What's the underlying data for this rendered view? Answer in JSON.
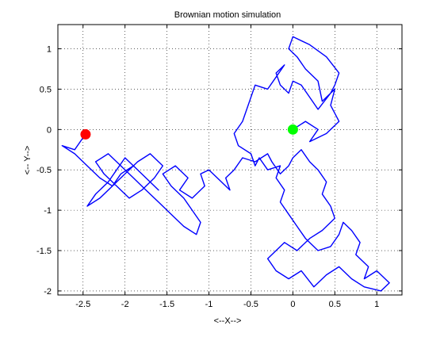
{
  "chart_data": {
    "type": "line",
    "title": "Brownian motion simulation",
    "xlabel": "<--X-->",
    "ylabel": "<-- Y-->",
    "xlim": [
      -2.8,
      1.3
    ],
    "ylim": [
      -2.05,
      1.3
    ],
    "grid": true,
    "xticks": [
      -2.5,
      -2,
      -1.5,
      -1,
      -0.5,
      0,
      0.5,
      1
    ],
    "xtick_labels": [
      "-2.5",
      "-2",
      "-1.5",
      "-1",
      "-0.5",
      "0",
      "0.5",
      "1"
    ],
    "yticks": [
      1,
      0.5,
      0,
      -0.5,
      -1,
      -1.5,
      -2
    ],
    "ytick_labels": [
      "1",
      "0.5",
      "0",
      "-0.5",
      "-1",
      "-1.5",
      "-2"
    ],
    "series": [
      {
        "color": "#0000ff",
        "x": [
          0,
          0.15,
          0.3,
          0.2,
          0.4,
          0.55,
          0.45,
          0.5,
          0.35,
          0.3,
          0.15,
          0.05,
          -0.05,
          0.0,
          0.2,
          0.4,
          0.55,
          0.5,
          0.45,
          0.3,
          0.2,
          0.1,
          0.0,
          -0.05,
          -0.15,
          -0.2,
          -0.1,
          -0.2,
          -0.3,
          -0.45,
          -0.5,
          -0.55,
          -0.6,
          -0.7,
          -0.65,
          -0.5,
          -0.45,
          -0.4,
          -0.3,
          -0.15,
          -0.2,
          -0.1,
          -0.15,
          -0.05,
          0.05,
          0.15,
          0.3,
          0.45,
          0.55,
          0.6,
          0.7,
          0.8,
          0.75,
          0.9,
          0.85,
          1.0,
          1.15,
          1.05,
          0.85,
          0.7,
          0.55,
          0.4,
          0.25,
          0.1,
          -0.05,
          -0.2,
          -0.3,
          -0.2,
          -0.1,
          0.05,
          0.2,
          0.35,
          0.5,
          0.45,
          0.35,
          0.4,
          0.3,
          0.2,
          0.1,
          0.0,
          -0.05,
          -0.15,
          -0.25,
          -0.3,
          -0.45,
          -0.6,
          -0.7,
          -0.8,
          -0.75,
          -0.85,
          -1.0,
          -1.1,
          -1.05,
          -1.2,
          -1.35,
          -1.25,
          -1.4,
          -1.55,
          -1.45,
          -1.3,
          -1.2,
          -1.1,
          -1.15,
          -1.3,
          -1.45,
          -1.6,
          -1.75,
          -1.9,
          -2.05,
          -2.2,
          -2.35,
          -2.25,
          -2.1,
          -1.95,
          -1.8,
          -1.65,
          -1.55,
          -1.7,
          -1.85,
          -2.0,
          -2.15,
          -2.3,
          -2.45,
          -2.35,
          -2.2,
          -2.1,
          -2.0,
          -1.85,
          -1.7,
          -1.6,
          -1.75,
          -1.9,
          -2.05,
          -2.15,
          -2.3,
          -2.45,
          -2.6,
          -2.75,
          -2.6,
          -2.5,
          -2.47
        ],
        "y": [
          0,
          0.1,
          0.0,
          -0.15,
          -0.05,
          0.1,
          0.3,
          0.5,
          0.35,
          0.6,
          0.75,
          0.9,
          1.0,
          1.15,
          1.05,
          0.9,
          0.7,
          0.55,
          0.45,
          0.25,
          0.4,
          0.55,
          0.6,
          0.45,
          0.55,
          0.7,
          0.8,
          0.65,
          0.5,
          0.55,
          0.4,
          0.25,
          0.1,
          -0.05,
          -0.2,
          -0.3,
          -0.45,
          -0.35,
          -0.5,
          -0.45,
          -0.6,
          -0.75,
          -0.9,
          -1.05,
          -1.2,
          -1.35,
          -1.5,
          -1.45,
          -1.3,
          -1.15,
          -1.25,
          -1.4,
          -1.55,
          -1.7,
          -1.85,
          -1.75,
          -1.9,
          -2.0,
          -1.95,
          -1.85,
          -1.7,
          -1.8,
          -1.95,
          -1.75,
          -1.85,
          -1.75,
          -1.6,
          -1.5,
          -1.4,
          -1.5,
          -1.35,
          -1.25,
          -1.1,
          -0.95,
          -0.8,
          -0.65,
          -0.5,
          -0.4,
          -0.25,
          -0.35,
          -0.45,
          -0.55,
          -0.4,
          -0.3,
          -0.4,
          -0.35,
          -0.5,
          -0.6,
          -0.75,
          -0.65,
          -0.5,
          -0.55,
          -0.7,
          -0.85,
          -0.75,
          -0.6,
          -0.45,
          -0.55,
          -0.7,
          -0.85,
          -1.0,
          -1.15,
          -1.3,
          -1.2,
          -1.05,
          -0.9,
          -0.75,
          -0.6,
          -0.45,
          -0.3,
          -0.4,
          -0.55,
          -0.7,
          -0.85,
          -0.75,
          -0.6,
          -0.45,
          -0.3,
          -0.4,
          -0.55,
          -0.7,
          -0.85,
          -0.95,
          -0.8,
          -0.65,
          -0.5,
          -0.35,
          -0.5,
          -0.65,
          -0.75,
          -0.6,
          -0.45,
          -0.55,
          -0.7,
          -0.6,
          -0.45,
          -0.3,
          -0.2,
          -0.25,
          -0.1,
          -0.05
        ]
      }
    ],
    "markers": [
      {
        "x": 0,
        "y": 0,
        "color": "#00ff00"
      },
      {
        "x": -2.47,
        "y": -0.06,
        "color": "#ff0000"
      }
    ]
  }
}
